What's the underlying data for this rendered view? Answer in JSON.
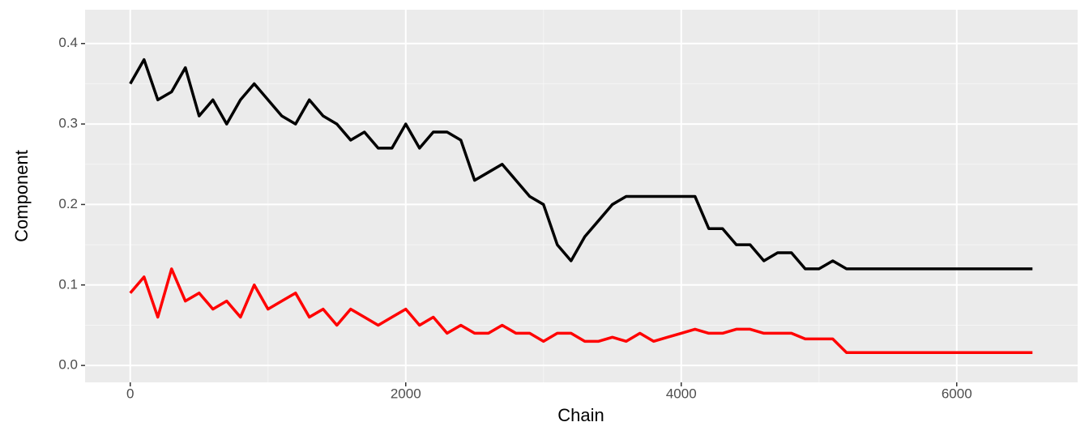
{
  "chart_data": {
    "type": "line",
    "x_label": "Chain",
    "y_label": "Component",
    "x": [
      0,
      100,
      200,
      300,
      400,
      500,
      600,
      700,
      800,
      900,
      1000,
      1100,
      1200,
      1300,
      1400,
      1500,
      1600,
      1700,
      1800,
      1900,
      2000,
      2100,
      2200,
      2300,
      2400,
      2500,
      2600,
      2700,
      2800,
      2900,
      3000,
      3100,
      3200,
      3300,
      3400,
      3500,
      3600,
      3700,
      3800,
      3900,
      4000,
      4100,
      4200,
      4300,
      4400,
      4500,
      4600,
      4700,
      4800,
      4900,
      5000,
      5100,
      5200,
      5300,
      5400,
      5500,
      5600,
      5700,
      5800,
      5900,
      6000,
      6100,
      6200,
      6300,
      6400,
      6500,
      6550
    ],
    "series": [
      {
        "color": "#000000",
        "values": [
          0.35,
          0.38,
          0.33,
          0.34,
          0.37,
          0.31,
          0.33,
          0.3,
          0.33,
          0.35,
          0.33,
          0.31,
          0.3,
          0.33,
          0.31,
          0.3,
          0.28,
          0.29,
          0.27,
          0.27,
          0.3,
          0.27,
          0.29,
          0.29,
          0.28,
          0.23,
          0.24,
          0.25,
          0.23,
          0.21,
          0.2,
          0.15,
          0.13,
          0.16,
          0.18,
          0.2,
          0.21,
          0.21,
          0.21,
          0.21,
          0.21,
          0.21,
          0.17,
          0.17,
          0.15,
          0.15,
          0.13,
          0.14,
          0.14,
          0.12,
          0.12,
          0.13,
          0.12,
          0.12,
          0.12,
          0.12,
          0.12,
          0.12,
          0.12,
          0.12,
          0.12,
          0.12,
          0.12,
          0.12,
          0.12,
          0.12,
          0.12
        ]
      },
      {
        "color": "#ff0000",
        "values": [
          0.09,
          0.11,
          0.06,
          0.12,
          0.08,
          0.09,
          0.07,
          0.08,
          0.06,
          0.1,
          0.07,
          0.08,
          0.09,
          0.06,
          0.07,
          0.05,
          0.07,
          0.06,
          0.05,
          0.06,
          0.07,
          0.05,
          0.06,
          0.04,
          0.05,
          0.04,
          0.04,
          0.05,
          0.04,
          0.04,
          0.03,
          0.04,
          0.04,
          0.03,
          0.03,
          0.035,
          0.03,
          0.04,
          0.03,
          0.035,
          0.04,
          0.045,
          0.04,
          0.04,
          0.045,
          0.045,
          0.04,
          0.04,
          0.04,
          0.033,
          0.033,
          0.033,
          0.016,
          0.016,
          0.016,
          0.016,
          0.016,
          0.016,
          0.016,
          0.016,
          0.016,
          0.016,
          0.016,
          0.016,
          0.016,
          0.016,
          0.016
        ]
      }
    ],
    "xlim": [
      -328,
      6878
    ],
    "ylim": [
      -0.021,
      0.442
    ],
    "xticks": [
      0,
      2000,
      4000,
      6000
    ],
    "yticks": [
      {
        "value": 0,
        "label": "0.0"
      },
      0.1,
      0.2,
      0.3,
      0.4
    ],
    "xminor": [
      1000,
      3000,
      5000
    ],
    "yminor": [
      0.05,
      0.15,
      0.25,
      0.35
    ],
    "grid": true
  }
}
